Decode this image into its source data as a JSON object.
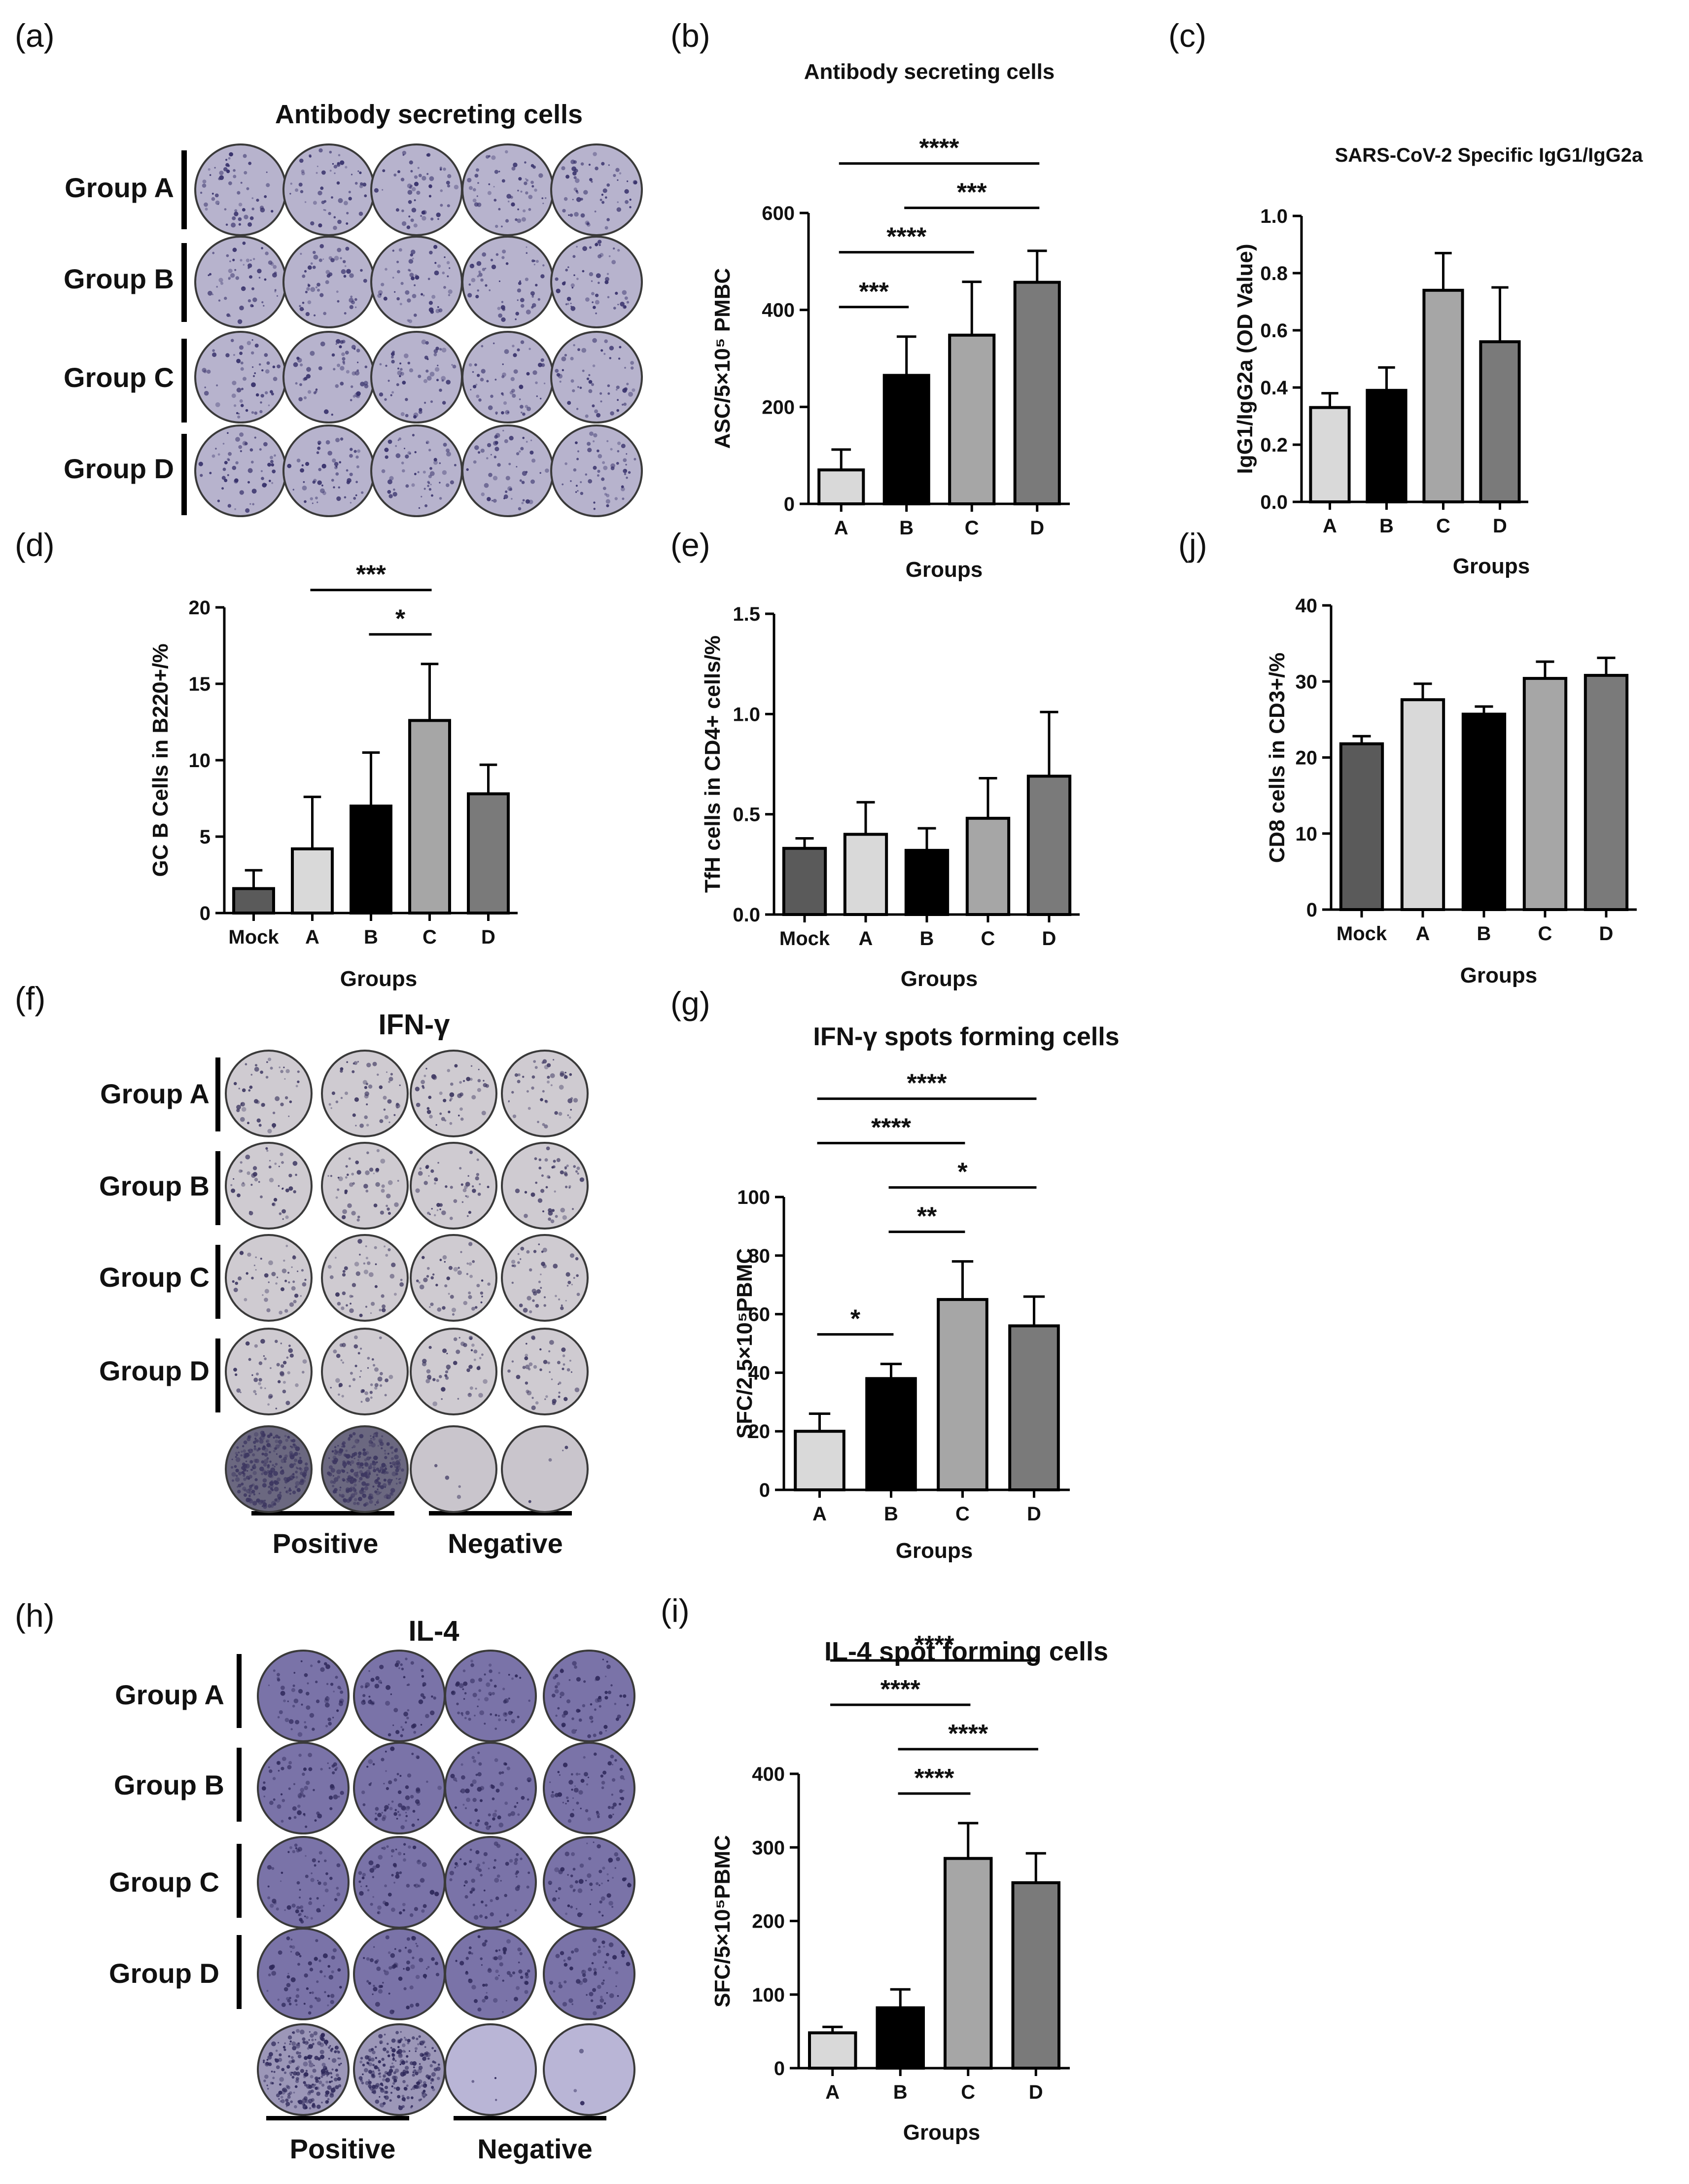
{
  "panels": {
    "a": {
      "letter": "(a)",
      "title": "Antibody secreting cells",
      "rows": [
        "Group A",
        "Group B",
        "Group C",
        "Group D"
      ]
    },
    "f": {
      "letter": "(f)",
      "title": "IFN-γ",
      "rows": [
        "Group A",
        "Group B",
        "Group C",
        "Group D"
      ],
      "controls": [
        "Positive",
        "Negative"
      ]
    },
    "h": {
      "letter": "(h)",
      "title": "IL-4",
      "rows": [
        "Group A",
        "Group B",
        "Group C",
        "Group D"
      ],
      "controls": [
        "Positive",
        "Negative"
      ]
    }
  },
  "colors": {
    "A": "#d9d9d9",
    "B": "#000000",
    "C": "#a6a6a6",
    "D": "#7a7a7a",
    "Mock": "#5a5a5a",
    "well": "#b9b5cf",
    "spot": "#3b356a"
  },
  "chart_data": [
    {
      "id": "b",
      "letter": "(b)",
      "type": "bar",
      "title": "Antibody secreting cells",
      "xlabel": "Groups",
      "ylabel": "ASC/5×10⁵ PMBC",
      "categories": [
        "A",
        "B",
        "C",
        "D"
      ],
      "values": [
        70,
        265,
        348,
        457
      ],
      "errors": [
        42,
        80,
        110,
        65
      ],
      "ylim": [
        0,
        600
      ],
      "yticks": [
        0,
        200,
        400,
        600
      ],
      "ytick_labels": [
        "0",
        "200",
        "400",
        "600"
      ],
      "significance": [
        {
          "from": "A",
          "to": "B",
          "label": "***"
        },
        {
          "from": "A",
          "to": "C",
          "label": "****"
        },
        {
          "from": "B",
          "to": "D",
          "label": "***"
        },
        {
          "from": "A",
          "to": "D",
          "label": "****"
        }
      ]
    },
    {
      "id": "c",
      "letter": "(c)",
      "type": "bar",
      "title": "SARS-CoV-2 Specific IgG1/IgG2a",
      "xlabel": "Groups",
      "ylabel": "IgG1/IgG2a (OD Value)",
      "categories": [
        "A",
        "B",
        "C",
        "D"
      ],
      "values": [
        0.33,
        0.39,
        0.74,
        0.56
      ],
      "errors": [
        0.05,
        0.08,
        0.13,
        0.19
      ],
      "ylim": [
        0,
        1.0
      ],
      "yticks": [
        0,
        0.2,
        0.4,
        0.6,
        0.8,
        1.0
      ],
      "ytick_labels": [
        "0.0",
        "0.2",
        "0.4",
        "0.6",
        "0.8",
        "1.0"
      ],
      "significance": []
    },
    {
      "id": "d",
      "letter": "(d)",
      "type": "bar",
      "title": "",
      "xlabel": "Groups",
      "ylabel": "GC B Cells in B220+/%",
      "categories": [
        "Mock",
        "A",
        "B",
        "C",
        "D"
      ],
      "values": [
        1.6,
        4.2,
        7.0,
        12.6,
        7.8
      ],
      "errors": [
        1.2,
        3.4,
        3.5,
        3.7,
        1.9
      ],
      "ylim": [
        0,
        20
      ],
      "yticks": [
        0,
        5,
        10,
        15,
        20
      ],
      "ytick_labels": [
        "0",
        "5",
        "10",
        "15",
        "20"
      ],
      "significance": [
        {
          "from": "A",
          "to": "C",
          "label": "***"
        },
        {
          "from": "B",
          "to": "C",
          "label": "*"
        }
      ]
    },
    {
      "id": "e",
      "letter": "(e)",
      "type": "bar",
      "title": "",
      "xlabel": "Groups",
      "ylabel": "TfH cells in CD4+ cells/%",
      "categories": [
        "Mock",
        "A",
        "B",
        "C",
        "D"
      ],
      "values": [
        0.33,
        0.4,
        0.32,
        0.48,
        0.69
      ],
      "errors": [
        0.05,
        0.16,
        0.11,
        0.2,
        0.32
      ],
      "ylim": [
        0,
        1.5
      ],
      "yticks": [
        0,
        0.5,
        1.0,
        1.5
      ],
      "ytick_labels": [
        "0.0",
        "0.5",
        "1.0",
        "1.5"
      ],
      "significance": []
    },
    {
      "id": "j",
      "letter": "(j)",
      "type": "bar",
      "title": "",
      "xlabel": "Groups",
      "ylabel": "CD8 cells in CD3+/%",
      "categories": [
        "Mock",
        "A",
        "B",
        "C",
        "D"
      ],
      "values": [
        21.8,
        27.6,
        25.7,
        30.4,
        30.8
      ],
      "errors": [
        1.0,
        2.1,
        1.0,
        2.2,
        2.3
      ],
      "ylim": [
        0,
        40
      ],
      "yticks": [
        0,
        10,
        20,
        30,
        40
      ],
      "ytick_labels": [
        "0",
        "10",
        "20",
        "30",
        "40"
      ],
      "significance": []
    },
    {
      "id": "g",
      "letter": "(g)",
      "type": "bar",
      "title": "IFN-γ spots forming cells",
      "xlabel": "Groups",
      "ylabel": "SFC/2.5×10⁵PBMC",
      "categories": [
        "A",
        "B",
        "C",
        "D"
      ],
      "values": [
        20,
        38,
        65,
        56
      ],
      "errors": [
        6,
        5,
        13,
        10
      ],
      "ylim": [
        0,
        100
      ],
      "yticks": [
        0,
        20,
        40,
        60,
        80,
        100
      ],
      "ytick_labels": [
        "0",
        "20",
        "40",
        "60",
        "80",
        "100"
      ],
      "significance": [
        {
          "from": "A",
          "to": "B",
          "label": "*"
        },
        {
          "from": "B",
          "to": "C",
          "label": "**"
        },
        {
          "from": "B",
          "to": "D",
          "label": "*"
        },
        {
          "from": "A",
          "to": "C",
          "label": "****"
        },
        {
          "from": "A",
          "to": "D",
          "label": "****"
        }
      ]
    },
    {
      "id": "i",
      "letter": "(i)",
      "type": "bar",
      "title": "IL-4 spot forming cells",
      "xlabel": "Groups",
      "ylabel": "SFC/5×10⁵PBMC",
      "categories": [
        "A",
        "B",
        "C",
        "D"
      ],
      "values": [
        48,
        82,
        285,
        252
      ],
      "errors": [
        8,
        25,
        48,
        40
      ],
      "ylim": [
        0,
        400
      ],
      "yticks": [
        0,
        100,
        200,
        300,
        400
      ],
      "ytick_labels": [
        "0",
        "100",
        "200",
        "300",
        "400"
      ],
      "significance": [
        {
          "from": "B",
          "to": "C",
          "label": "****"
        },
        {
          "from": "B",
          "to": "D",
          "label": "****"
        },
        {
          "from": "A",
          "to": "C",
          "label": "****"
        },
        {
          "from": "A",
          "to": "D",
          "label": "****"
        }
      ]
    }
  ]
}
